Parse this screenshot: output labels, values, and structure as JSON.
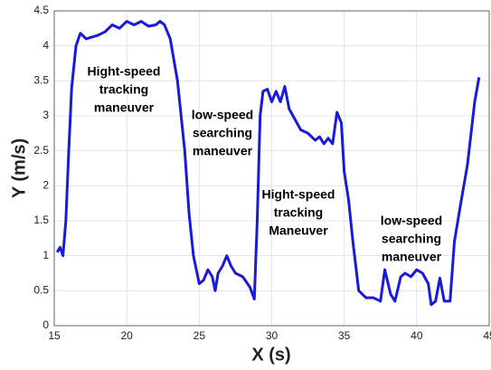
{
  "chart_data": {
    "type": "line",
    "x_label": "X (s)",
    "y_label": "Y (m/s)",
    "xlim": [
      15,
      45
    ],
    "xticks": [
      15,
      20,
      25,
      30,
      35,
      40,
      45
    ],
    "ylim": [
      0,
      4.5
    ],
    "yticks": [
      0,
      0.5,
      1,
      1.5,
      2,
      2.5,
      3,
      3.5,
      4,
      4.5
    ],
    "grid": true,
    "annotations": [
      [
        "Hight-speed",
        "tracking",
        "maneuver"
      ],
      [
        "low-speed",
        "searching",
        "maneuver"
      ],
      [
        "Hight-speed",
        "tracking",
        "Maneuver"
      ],
      [
        "low-speed",
        "searching",
        "maneuver"
      ]
    ],
    "series": [
      {
        "color": "#1a1adb",
        "x": [
          15.2,
          15.4,
          15.6,
          15.8,
          16.0,
          16.2,
          16.5,
          16.8,
          17.2,
          18,
          18.5,
          19,
          19.5,
          20,
          20.5,
          21,
          21.5,
          22,
          22.3,
          22.6,
          23,
          23.5,
          24,
          24.3,
          24.6,
          25,
          25.3,
          25.6,
          25.9,
          26.1,
          26.3,
          26.6,
          26.9,
          27.2,
          27.5,
          28,
          28.5,
          28.8,
          29.0,
          29.2,
          29.4,
          29.7,
          30,
          30.3,
          30.6,
          30.9,
          31.2,
          31.6,
          32,
          32.5,
          33,
          33.3,
          33.6,
          33.9,
          34.2,
          34.5,
          34.8,
          35,
          35.3,
          35.6,
          36,
          36.5,
          37,
          37.5,
          37.8,
          38.2,
          38.5,
          38.9,
          39.2,
          39.6,
          40.0,
          40.4,
          40.8,
          41.0,
          41.3,
          41.6,
          41.9,
          42.3,
          42.6,
          43,
          43.5,
          44,
          44.3
        ],
        "values": [
          1.05,
          1.12,
          1.0,
          1.5,
          2.5,
          3.4,
          4.0,
          4.18,
          4.1,
          4.15,
          4.2,
          4.3,
          4.25,
          4.35,
          4.3,
          4.35,
          4.28,
          4.3,
          4.35,
          4.3,
          4.1,
          3.5,
          2.5,
          1.6,
          1.0,
          0.6,
          0.65,
          0.8,
          0.7,
          0.5,
          0.75,
          0.85,
          1.0,
          0.85,
          0.75,
          0.7,
          0.55,
          0.38,
          1.5,
          3.0,
          3.35,
          3.38,
          3.2,
          3.35,
          3.2,
          3.42,
          3.1,
          2.95,
          2.8,
          2.75,
          2.65,
          2.7,
          2.6,
          2.68,
          2.6,
          3.05,
          2.9,
          2.2,
          1.8,
          1.2,
          0.5,
          0.4,
          0.4,
          0.35,
          0.8,
          0.45,
          0.35,
          0.7,
          0.75,
          0.7,
          0.8,
          0.75,
          0.6,
          0.3,
          0.35,
          0.68,
          0.35,
          0.35,
          1.2,
          1.7,
          2.3,
          3.2,
          3.55
        ]
      }
    ]
  }
}
